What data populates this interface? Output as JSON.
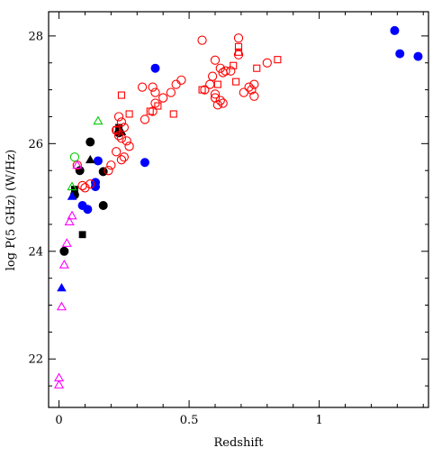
{
  "chart_data": {
    "type": "scatter",
    "title": "",
    "xlabel": "Redshift",
    "ylabel": "log P(5 GHz) (W/Hz)",
    "xlim": [
      -0.04,
      1.42
    ],
    "ylim": [
      21.1,
      28.45
    ],
    "xticks": [
      0,
      0.5,
      1
    ],
    "xtick_labels": [
      "0",
      "0.5",
      "1"
    ],
    "yticks": [
      22,
      24,
      26,
      28
    ],
    "ytick_labels": [
      "22",
      "24",
      "26",
      "28"
    ],
    "grid": false,
    "legend": "none",
    "series": [
      {
        "marker": "circle-filled",
        "color": "#0000ff",
        "x": [
          1.29,
          1.31,
          1.38,
          0.37,
          0.33,
          0.14,
          0.14,
          0.15,
          0.11,
          0.09
        ],
        "y": [
          28.1,
          27.67,
          27.62,
          27.4,
          25.65,
          25.28,
          25.2,
          25.68,
          24.78,
          24.85
        ]
      },
      {
        "marker": "circle-filled",
        "color": "#000000",
        "x": [
          0.02,
          0.12,
          0.17,
          0.17,
          0.23,
          0.06,
          0.08
        ],
        "y": [
          24.0,
          26.03,
          25.48,
          24.85,
          26.2,
          25.05,
          25.5
        ]
      },
      {
        "marker": "square-filled",
        "color": "#000000",
        "x": [
          0.09,
          0.23,
          0.06
        ],
        "y": [
          24.31,
          26.3,
          25.15
        ]
      },
      {
        "marker": "triangle-filled",
        "color": "#0000ff",
        "x": [
          0.01,
          0.05
        ],
        "y": [
          23.32,
          25.02
        ]
      },
      {
        "marker": "triangle-filled",
        "color": "#000000",
        "x": [
          0.12,
          0.24
        ],
        "y": [
          25.7,
          26.22
        ]
      },
      {
        "marker": "circle-open",
        "color": "#ff0000",
        "x": [
          0.55,
          0.69,
          0.59,
          0.63,
          0.66,
          0.69,
          0.73,
          0.75,
          0.8,
          0.6,
          0.62,
          0.64,
          0.58,
          0.6,
          0.62,
          0.56,
          0.71,
          0.74,
          0.75,
          0.61,
          0.63,
          0.6,
          0.45,
          0.47,
          0.43,
          0.36,
          0.37,
          0.4,
          0.32,
          0.33,
          0.36,
          0.37,
          0.23,
          0.24,
          0.25,
          0.22,
          0.23,
          0.24,
          0.26,
          0.27,
          0.22,
          0.24,
          0.25,
          0.2,
          0.19,
          0.09,
          0.1,
          0.12,
          0.07
        ],
        "y": [
          27.92,
          27.96,
          27.25,
          27.32,
          27.35,
          27.65,
          27.05,
          27.1,
          27.5,
          27.55,
          27.4,
          27.35,
          27.1,
          26.92,
          26.8,
          27.0,
          26.95,
          27.0,
          26.88,
          26.72,
          26.75,
          26.85,
          27.1,
          27.18,
          26.95,
          26.6,
          26.75,
          26.85,
          27.05,
          26.45,
          27.05,
          26.95,
          26.5,
          26.4,
          26.3,
          26.25,
          26.15,
          26.1,
          26.05,
          25.95,
          25.85,
          25.7,
          25.75,
          25.6,
          25.5,
          25.22,
          25.18,
          25.25,
          25.6
        ]
      },
      {
        "marker": "square-open",
        "color": "#ff0000",
        "x": [
          0.84,
          0.76,
          0.69,
          0.69,
          0.67,
          0.68,
          0.55,
          0.61,
          0.44,
          0.38,
          0.27,
          0.24,
          0.35,
          0.22
        ],
        "y": [
          27.56,
          27.4,
          27.8,
          27.7,
          27.45,
          27.15,
          27.0,
          27.1,
          26.55,
          26.7,
          26.55,
          26.9,
          26.6,
          26.25
        ]
      },
      {
        "marker": "circle-open",
        "color": "#00cc00",
        "x": [
          0.06
        ],
        "y": [
          25.75
        ]
      },
      {
        "marker": "triangle-open",
        "color": "#00cc00",
        "x": [
          0.15,
          0.05
        ],
        "y": [
          26.42,
          25.2
        ]
      },
      {
        "marker": "triangle-open",
        "color": "#ff00ff",
        "x": [
          0.0,
          0.0,
          0.01,
          0.02,
          0.03,
          0.04,
          0.05,
          0.07
        ],
        "y": [
          21.65,
          21.52,
          22.97,
          23.75,
          24.15,
          24.55,
          24.66,
          25.6
        ]
      }
    ]
  }
}
